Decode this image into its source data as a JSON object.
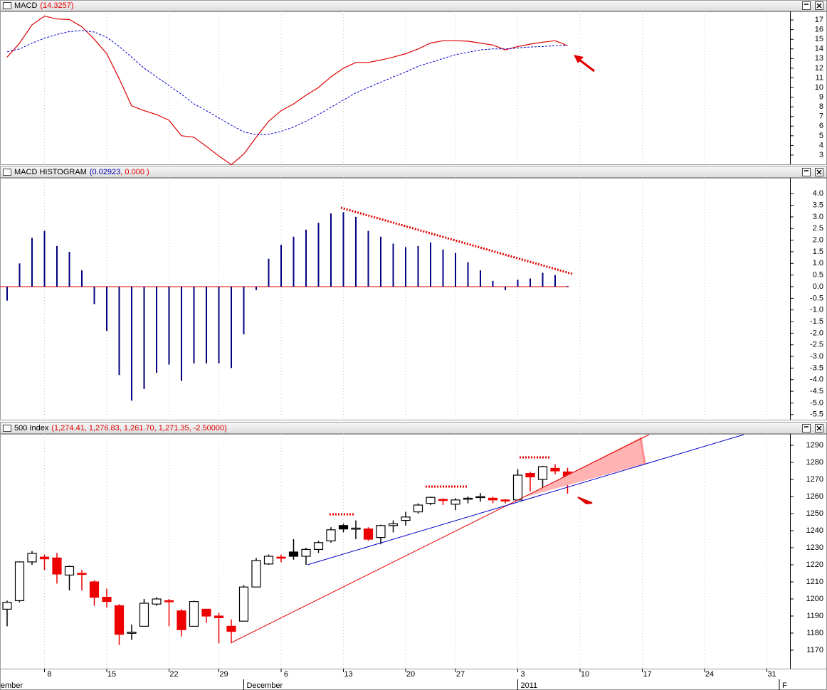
{
  "chart_data": [
    {
      "type": "line",
      "title": "MACD",
      "readout": "(14.3257)",
      "readout_color": "#e00000",
      "xlim": [
        -0.571,
        62.857
      ],
      "ylim": [
        2.04,
        17.89
      ],
      "grid": true,
      "yticks": [
        3,
        4,
        5,
        6,
        7,
        8,
        9,
        10,
        11,
        12,
        13,
        14,
        15,
        16,
        17
      ],
      "series": [
        {
          "color": "#e00000",
          "dash": false,
          "values": [
            13.15,
            14.6,
            16.5,
            17.4,
            17.1,
            17.05,
            16.3,
            15.0,
            13.5,
            10.9,
            8.1,
            7.6,
            7.2,
            6.6,
            5.0,
            4.85,
            3.9,
            2.9,
            2.0,
            3.1,
            4.85,
            6.5,
            7.6,
            8.3,
            9.2,
            10.0,
            11.1,
            12.0,
            12.6,
            12.6,
            12.85,
            13.15,
            13.5,
            14.0,
            14.6,
            14.85,
            14.85,
            14.8,
            14.6,
            14.4,
            13.9,
            14.25,
            14.5,
            14.7,
            14.85,
            14.33
          ]
        },
        {
          "color": "#0000cc",
          "dash": true,
          "values": [
            13.7,
            14.0,
            14.6,
            15.1,
            15.5,
            15.8,
            15.9,
            15.75,
            15.2,
            14.25,
            13.15,
            12.0,
            11.1,
            10.2,
            9.3,
            8.3,
            7.6,
            6.85,
            6.1,
            5.4,
            5.1,
            5.15,
            5.45,
            5.9,
            6.5,
            7.2,
            7.95,
            8.7,
            9.45,
            10.0,
            10.55,
            11.1,
            11.6,
            12.2,
            12.6,
            13.0,
            13.4,
            13.65,
            13.9,
            14.0,
            14.0,
            14.1,
            14.2,
            14.25,
            14.35,
            14.35
          ]
        }
      ]
    },
    {
      "type": "bar",
      "title": "MACD HISTOGRAM",
      "readout": [
        {
          "text": "(0.02923",
          "color": "#0000aa"
        },
        {
          "text": ", 0.000 )",
          "color": "#e00000"
        }
      ],
      "xlim": [
        -0.571,
        62.857
      ],
      "ylim": [
        -5.72,
        4.68
      ],
      "grid": true,
      "color": "#000080",
      "zero_line_color": "#e00000",
      "yticks": [
        {
          "value": 4,
          "label": "4.0"
        },
        3.5,
        {
          "value": 3,
          "label": "3.0"
        },
        2.5,
        {
          "value": 2,
          "label": "2.0"
        },
        1.5,
        {
          "value": 1,
          "label": "1.0"
        },
        0.5,
        {
          "value": 0,
          "label": "0.0"
        },
        -0.5,
        {
          "value": -1,
          "label": "-1.0"
        },
        -1.5,
        {
          "value": -2,
          "label": "-2.0"
        },
        -2.5,
        {
          "value": -3,
          "label": "-3.0"
        },
        -3.5,
        {
          "value": -4,
          "label": "-4.0"
        },
        -4.5,
        {
          "value": -5,
          "label": "-5.0"
        },
        -5.5
      ],
      "values": [
        -0.6,
        1.0,
        2.1,
        2.4,
        1.75,
        1.5,
        0.7,
        -0.75,
        -1.9,
        -3.8,
        -4.9,
        -4.4,
        -3.7,
        -3.35,
        -4.05,
        -3.3,
        -3.3,
        -3.3,
        -3.5,
        -2.05,
        -0.15,
        1.2,
        1.8,
        2.15,
        2.45,
        2.75,
        3.15,
        3.2,
        3.0,
        2.4,
        2.15,
        1.85,
        1.7,
        1.75,
        1.9,
        1.6,
        1.45,
        1.05,
        0.7,
        0.25,
        -0.15,
        0.3,
        0.35,
        0.6,
        0.5,
        0.02923
      ]
    },
    {
      "type": "candlestick",
      "title": "500 Index",
      "readout": "(1,274.41, 1,276.83, 1,261.70, 1,271.35, -2.50000)",
      "readout_color": "#e00000",
      "xlim": [
        -0.571,
        62.857
      ],
      "ylim": [
        1159.17,
        1296.67
      ],
      "grid": true,
      "up_color": "#000000",
      "down_color": "#ee0000",
      "yticks": [
        1170,
        1180,
        1190,
        1200,
        1210,
        1220,
        1230,
        1240,
        1250,
        1260,
        1270,
        1280,
        1290
      ],
      "xticks": [
        {
          "value": 3,
          "label": "8"
        },
        {
          "value": 8,
          "label": "15"
        },
        {
          "value": 13,
          "label": "22"
        },
        {
          "value": 17,
          "label": "29"
        },
        {
          "value": 22,
          "label": "6"
        },
        {
          "value": 27,
          "label": "13"
        },
        {
          "value": 32,
          "label": "20"
        },
        {
          "value": 36,
          "label": "27"
        },
        {
          "value": 41,
          "label": "3"
        },
        {
          "value": 46,
          "label": "10"
        },
        {
          "value": 51,
          "label": "17"
        },
        {
          "value": 56,
          "label": "24"
        },
        {
          "value": 61,
          "label": "31"
        }
      ],
      "month_labels": [
        {
          "value": -0.75,
          "label": "ember"
        },
        {
          "value": 19,
          "label": "December"
        },
        {
          "value": 41,
          "label": "2011"
        },
        {
          "value": 62,
          "label": "F"
        }
      ],
      "open": [
        1194,
        1199,
        1221.7,
        1224.5,
        1224,
        1214,
        1215,
        1210,
        1201,
        1196,
        1180,
        1184,
        1197,
        1199,
        1193,
        1184,
        1194,
        1190,
        1184,
        1187,
        1207,
        1220.5,
        1224.5,
        1227.5,
        1225,
        1229,
        1234,
        1243,
        1241,
        1241,
        1236,
        1243,
        1246,
        1251,
        1256,
        1258.3,
        1255.5,
        1258.5,
        1259.5,
        1259,
        1258,
        1258,
        1273.5,
        1270,
        1276.5,
        1274.41
      ],
      "high": [
        1199,
        1222,
        1228,
        1226,
        1227,
        1219.5,
        1217,
        1211,
        1206,
        1197,
        1185,
        1200,
        1201,
        1200,
        1194,
        1199,
        1194,
        1192,
        1188,
        1208,
        1224,
        1226,
        1226,
        1235,
        1230,
        1234,
        1242,
        1244,
        1246,
        1242,
        1243.5,
        1246,
        1251,
        1256,
        1260,
        1259,
        1259,
        1260,
        1262,
        1260,
        1258.5,
        1276,
        1274.5,
        1278,
        1279,
        1276.83
      ],
      "low": [
        1184,
        1198,
        1220,
        1217,
        1209,
        1205,
        1205,
        1196,
        1195,
        1173,
        1176,
        1184,
        1196,
        1184,
        1178,
        1184,
        1186,
        1174,
        1174,
        1187,
        1207,
        1220,
        1221.5,
        1223,
        1220,
        1227,
        1233,
        1239,
        1235,
        1234,
        1232,
        1239,
        1243,
        1250,
        1255,
        1255,
        1252,
        1256,
        1257,
        1256,
        1256,
        1258,
        1263,
        1265,
        1273,
        1261.7
      ],
      "close": [
        1198,
        1221.7,
        1226.7,
        1223.5,
        1214.6,
        1219,
        1214.5,
        1201,
        1198.5,
        1179.3,
        1180.5,
        1197.5,
        1200,
        1198.5,
        1182,
        1198.5,
        1190,
        1189,
        1181,
        1207,
        1222.5,
        1225,
        1224,
        1225,
        1229,
        1233,
        1240.5,
        1241,
        1241.5,
        1235,
        1243,
        1244,
        1248,
        1255,
        1259.5,
        1257.8,
        1258,
        1259,
        1260,
        1258,
        1257.6,
        1272.5,
        1271.5,
        1277.5,
        1275,
        1271.35
      ]
    }
  ]
}
